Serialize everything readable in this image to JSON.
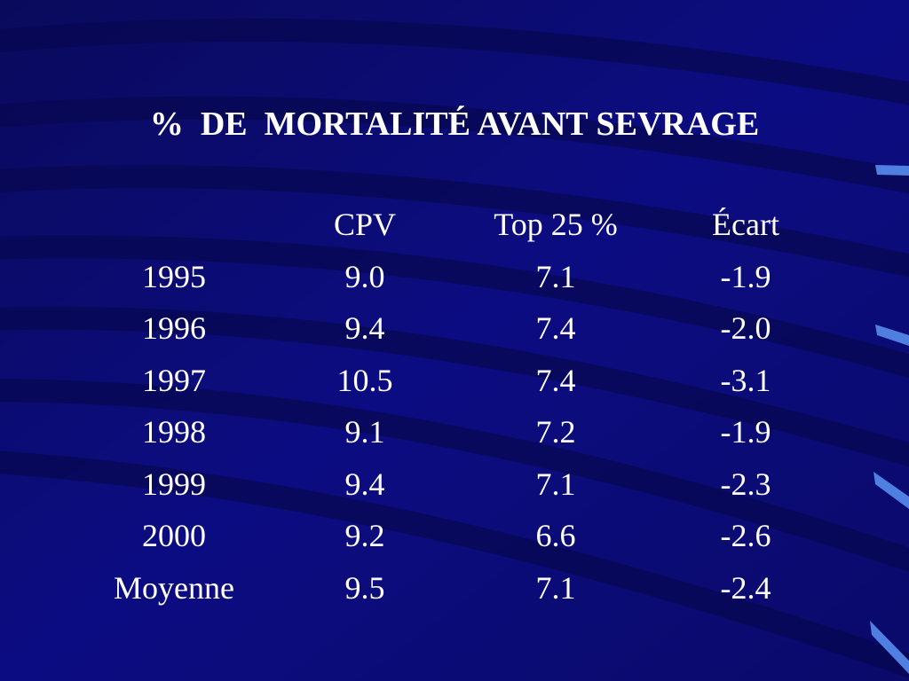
{
  "slide": {
    "title": "%  DE  MORTALITÉ AVANT SEVRAGE",
    "background_color": "#0b0b78",
    "accent_color": "#4f7fe0"
  },
  "table": {
    "headers": [
      "",
      "CPV",
      "Top 25 %",
      "Écart"
    ],
    "rows": [
      [
        "1995",
        "9.0",
        "7.1",
        "-1.9"
      ],
      [
        "1996",
        "9.4",
        "7.4",
        "-2.0"
      ],
      [
        "1997",
        "10.5",
        "7.4",
        "-3.1"
      ],
      [
        "1998",
        "9.1",
        "7.2",
        "-1.9"
      ],
      [
        "1999",
        "9.4",
        "7.1",
        "-2.3"
      ],
      [
        "2000",
        "9.2",
        "6.6",
        "-2.6"
      ],
      [
        "Moyenne",
        "9.5",
        "7.1",
        "-2.4"
      ]
    ]
  }
}
